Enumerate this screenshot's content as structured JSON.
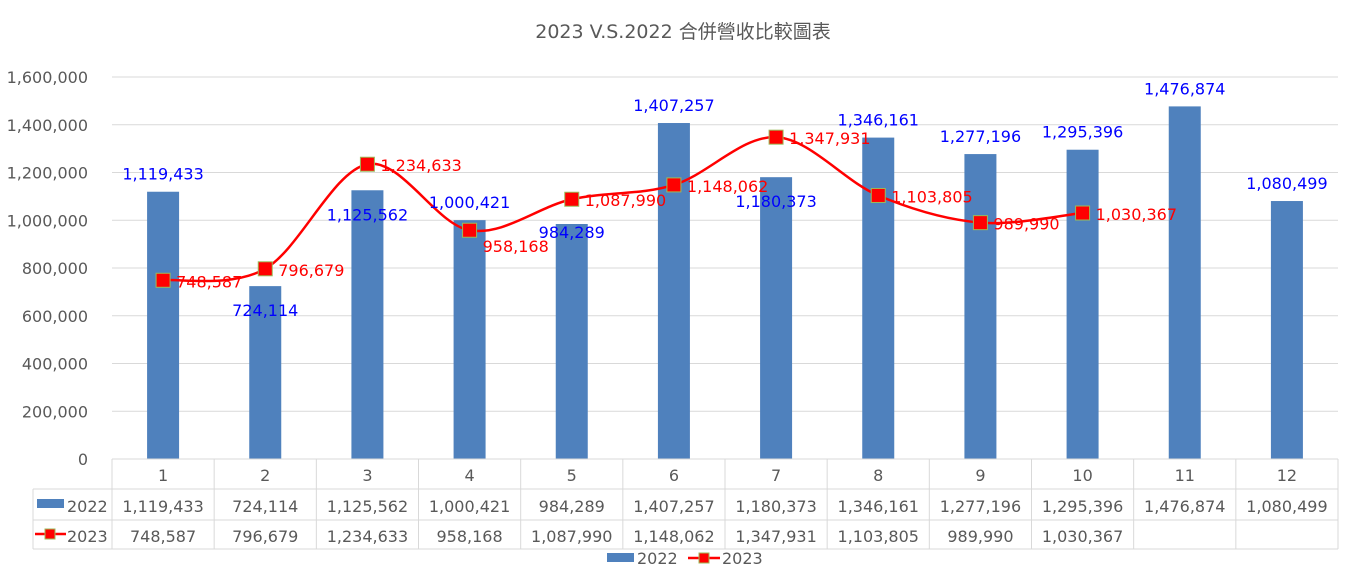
{
  "chart_data": {
    "type": "bar+line",
    "title": "2023 V.S.2022 合併營收比較圖表",
    "categories": [
      "1",
      "2",
      "3",
      "4",
      "5",
      "6",
      "7",
      "8",
      "9",
      "10",
      "11",
      "12"
    ],
    "ylim": [
      0,
      1600000
    ],
    "yticks": [
      0,
      200000,
      400000,
      600000,
      800000,
      1000000,
      1200000,
      1400000,
      1600000
    ],
    "ytick_labels": [
      "0",
      "200,000",
      "400,000",
      "600,000",
      "800,000",
      "1,000,000",
      "1,200,000",
      "1,400,000",
      "1,600,000"
    ],
    "grid": true,
    "legend": "bottom",
    "data_table": true,
    "series": [
      {
        "name": "2022",
        "kind": "bar",
        "color": "#4f81bd",
        "label_color": "#0000ff",
        "values": [
          1119433,
          724114,
          1125562,
          1000421,
          984289,
          1407257,
          1180373,
          1346161,
          1277196,
          1295396,
          1476874,
          1080499
        ],
        "labels": [
          "1,119,433",
          "724,114",
          "1,125,562",
          "1,000,421",
          "984,289",
          "1,407,257",
          "1,180,373",
          "1,346,161",
          "1,277,196",
          "1,295,396",
          "1,476,874",
          "1,080,499"
        ]
      },
      {
        "name": "2023",
        "kind": "line",
        "smooth": true,
        "marker": "square",
        "color": "#ff0000",
        "marker_border": "#9bbb59",
        "label_color": "#ff0000",
        "values": [
          748587,
          796679,
          1234633,
          958168,
          1087990,
          1148062,
          1347931,
          1103805,
          989990,
          1030367,
          null,
          null
        ],
        "labels": [
          "748,587",
          "796,679",
          "1,234,633",
          "958,168",
          "1,087,990",
          "1,148,062",
          "1,347,931",
          "1,103,805",
          "989,990",
          "1,030,367",
          "",
          ""
        ]
      }
    ]
  }
}
